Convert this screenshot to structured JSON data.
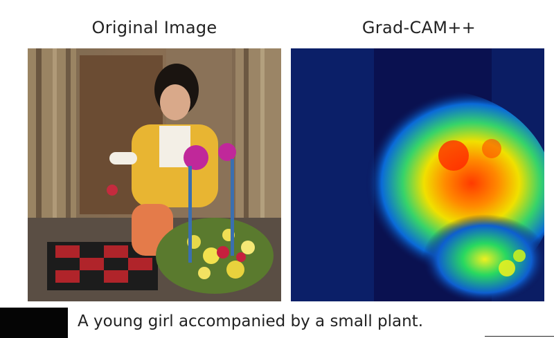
{
  "panels": {
    "left_title": "Original Image",
    "right_title": "Grad-CAM++"
  },
  "caption": "A young girl accompanied by a small plant."
}
